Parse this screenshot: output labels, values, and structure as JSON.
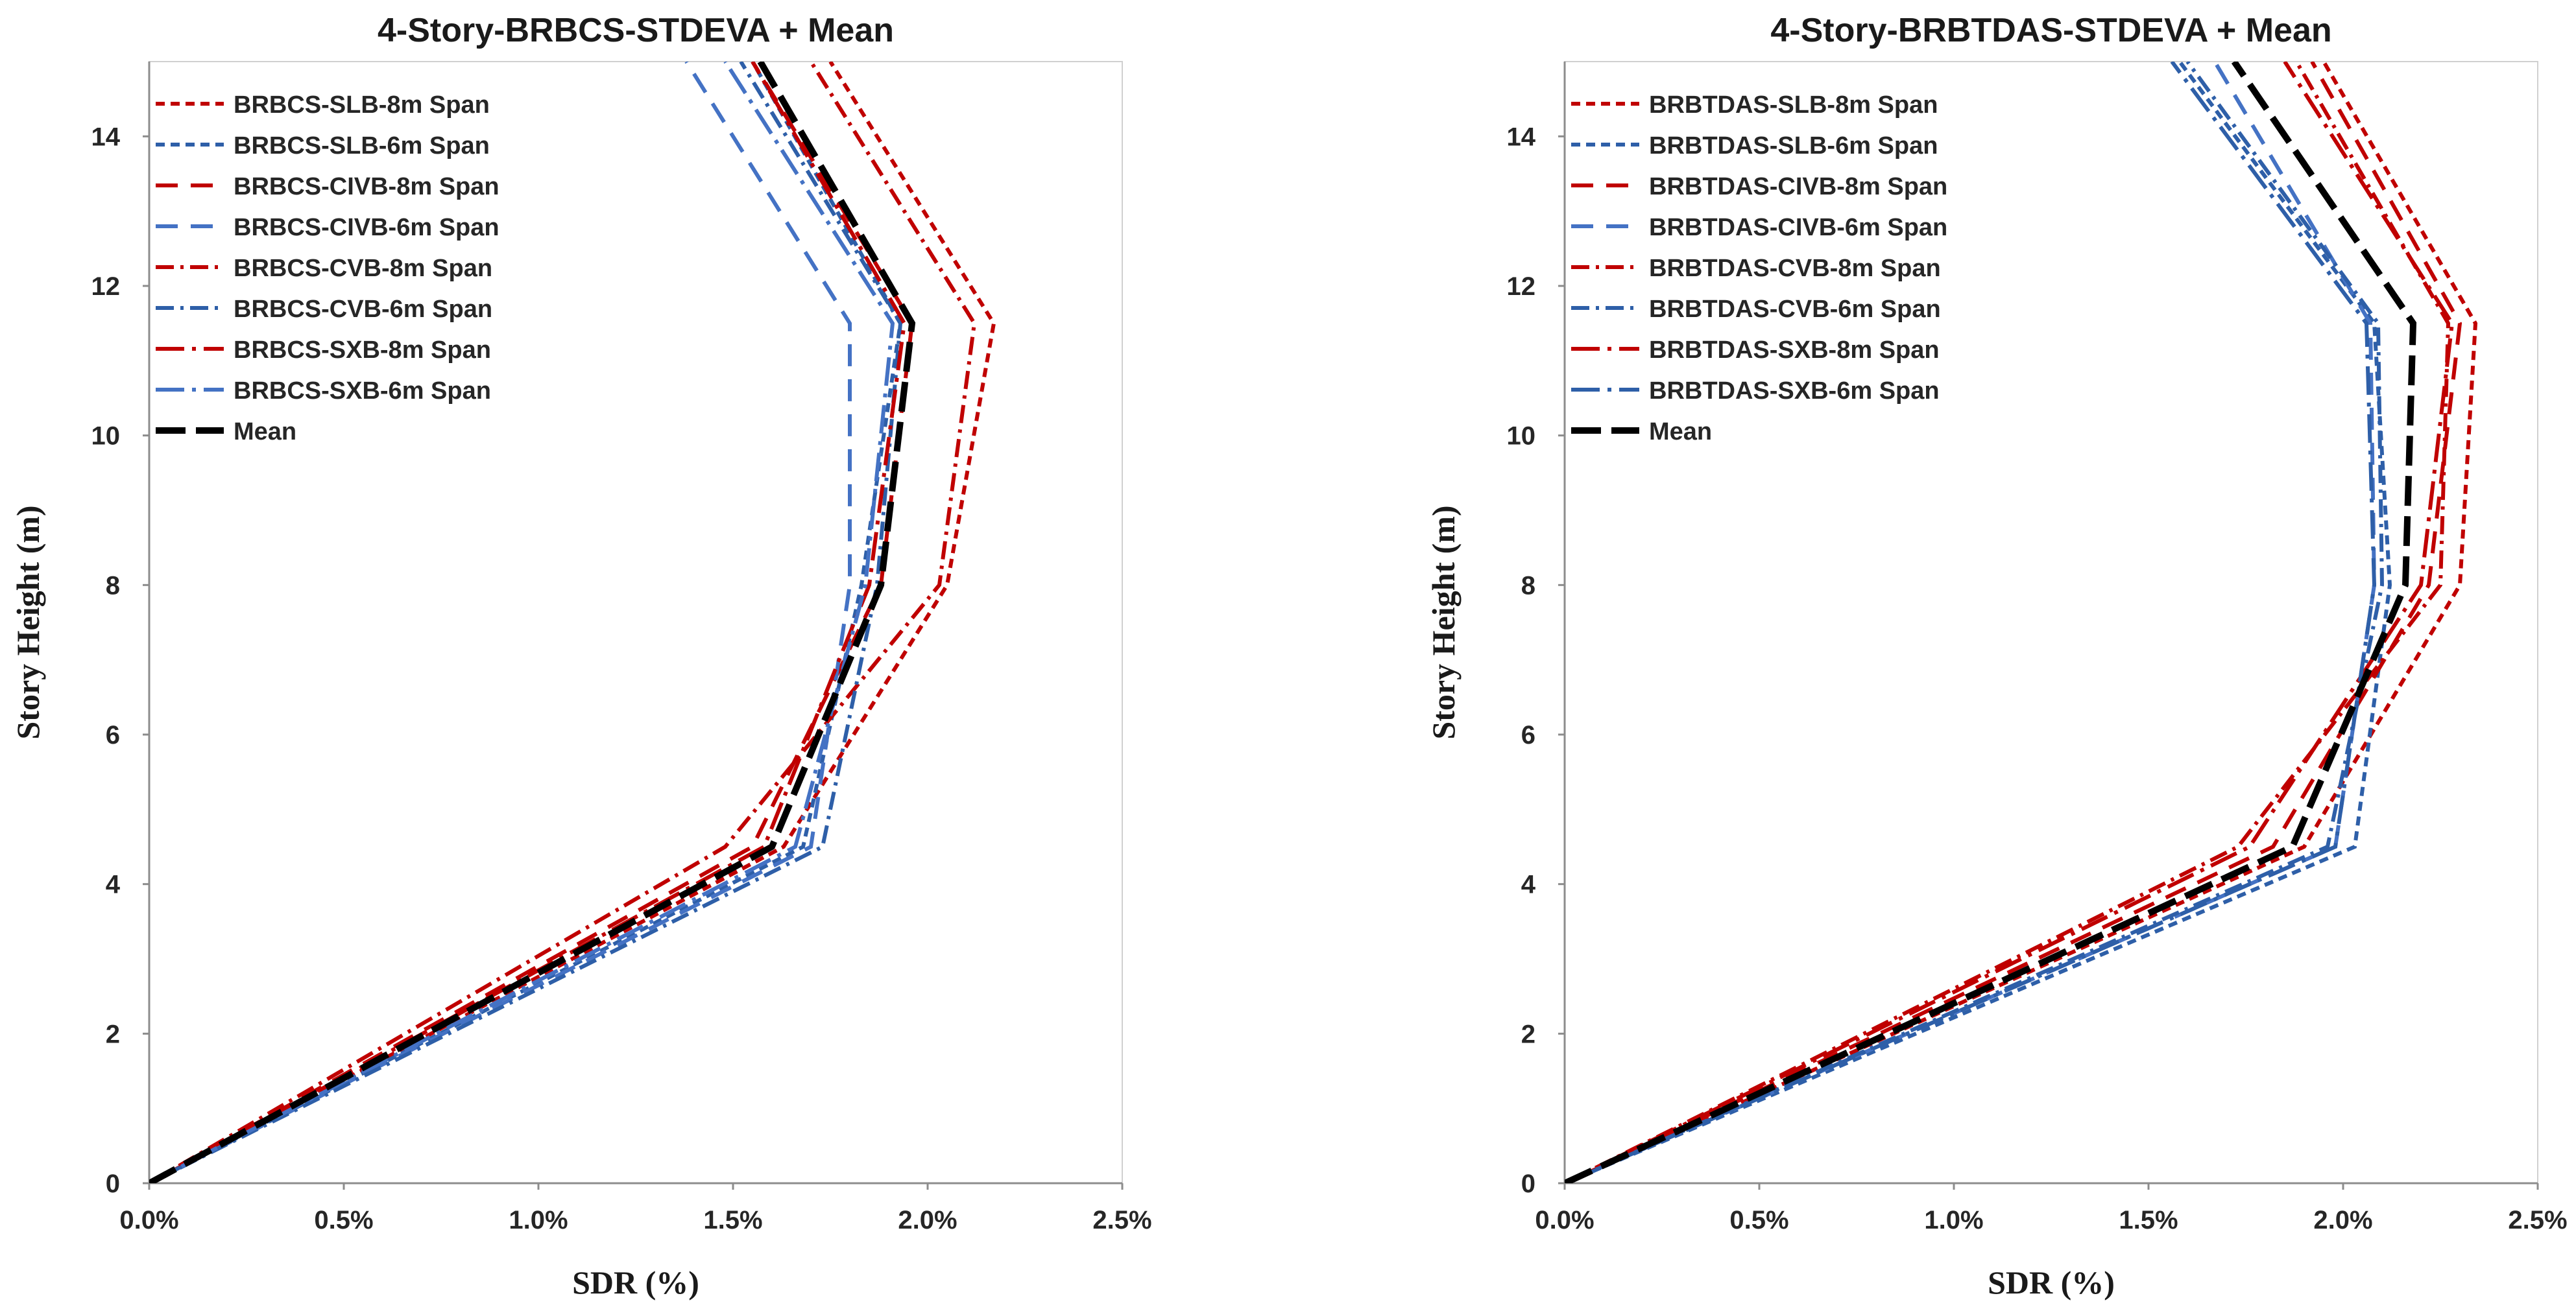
{
  "chart_data": [
    {
      "type": "line",
      "title": "4-Story-BRBCS-STDEVA + Mean",
      "xlabel": "SDR (%)",
      "ylabel": "Story Height (m)",
      "xlim": [
        0,
        2.5
      ],
      "ylim": [
        0,
        15
      ],
      "x_ticks": [
        "0.0%",
        "0.5%",
        "1.0%",
        "1.5%",
        "2.0%",
        "2.5%"
      ],
      "y_ticks": [
        "0",
        "2",
        "4",
        "6",
        "8",
        "10",
        "12",
        "14"
      ],
      "legend_position": "top-left",
      "series": [
        {
          "name": "BRBCS-SLB-8m Span",
          "color": "#C00000",
          "dash": "short-dash",
          "points": [
            [
              0,
              0
            ],
            [
              1.63,
              4.5
            ],
            [
              2.05,
              8
            ],
            [
              2.17,
              11.5
            ],
            [
              1.75,
              15
            ]
          ]
        },
        {
          "name": "BRBCS-SLB-6m Span",
          "color": "#2E5FA8",
          "dash": "short-dash",
          "points": [
            [
              0,
              0
            ],
            [
              1.68,
              4.5
            ],
            [
              1.83,
              8
            ],
            [
              1.93,
              11.5
            ],
            [
              1.55,
              15
            ]
          ]
        },
        {
          "name": "BRBCS-CIVB-8m Span",
          "color": "#C00000",
          "dash": "long-dash",
          "points": [
            [
              0,
              0
            ],
            [
              1.55,
              4.5
            ],
            [
              1.88,
              8
            ],
            [
              1.96,
              11.5
            ],
            [
              1.55,
              15
            ]
          ]
        },
        {
          "name": "BRBCS-CIVB-6m Span",
          "color": "#4472C4",
          "dash": "long-dash",
          "points": [
            [
              0,
              0
            ],
            [
              1.7,
              4.5
            ],
            [
              1.8,
              8
            ],
            [
              1.8,
              11.5
            ],
            [
              1.38,
              15
            ]
          ]
        },
        {
          "name": "BRBCS-CVB-8m Span",
          "color": "#C00000",
          "dash": "dash-dot",
          "points": [
            [
              0,
              0
            ],
            [
              1.48,
              4.5
            ],
            [
              2.03,
              8
            ],
            [
              2.12,
              11.5
            ],
            [
              1.7,
              15
            ]
          ]
        },
        {
          "name": "BRBCS-CVB-6m Span",
          "color": "#2E5FA8",
          "dash": "dash-dot",
          "points": [
            [
              0,
              0
            ],
            [
              1.73,
              4.5
            ],
            [
              1.87,
              8
            ],
            [
              1.93,
              11.5
            ],
            [
              1.52,
              15
            ]
          ]
        },
        {
          "name": "BRBCS-SXB-8m Span",
          "color": "#C00000",
          "dash": "long-dash-dot",
          "points": [
            [
              0,
              0
            ],
            [
              1.58,
              4.5
            ],
            [
              1.85,
              8
            ],
            [
              1.94,
              11.5
            ],
            [
              1.55,
              15
            ]
          ]
        },
        {
          "name": "BRBCS-SXB-6m Span",
          "color": "#4472C4",
          "dash": "long-dash-dot",
          "points": [
            [
              0,
              0
            ],
            [
              1.66,
              4.5
            ],
            [
              1.84,
              8
            ],
            [
              1.91,
              11.5
            ],
            [
              1.48,
              15
            ]
          ]
        },
        {
          "name": "Mean",
          "color": "#000000",
          "dash": "mean-dash",
          "points": [
            [
              0,
              0
            ],
            [
              1.6,
              4.5
            ],
            [
              1.88,
              8
            ],
            [
              1.96,
              11.5
            ],
            [
              1.57,
              15
            ]
          ]
        }
      ]
    },
    {
      "type": "line",
      "title": "4-Story-BRBTDAS-STDEVA + Mean",
      "xlabel": "SDR (%)",
      "ylabel": "Story Height (m)",
      "xlim": [
        0,
        2.5
      ],
      "ylim": [
        0,
        15
      ],
      "x_ticks": [
        "0.0%",
        "0.5%",
        "1.0%",
        "1.5%",
        "2.0%",
        "2.5%"
      ],
      "y_ticks": [
        "0",
        "2",
        "4",
        "6",
        "8",
        "10",
        "12",
        "14"
      ],
      "legend_position": "top-left",
      "series": [
        {
          "name": "BRBTDAS-SLB-8m Span",
          "color": "#C00000",
          "dash": "short-dash",
          "points": [
            [
              0,
              0
            ],
            [
              1.9,
              4.5
            ],
            [
              2.3,
              8
            ],
            [
              2.34,
              11.5
            ],
            [
              1.95,
              15
            ]
          ]
        },
        {
          "name": "BRBTDAS-SLB-6m Span",
          "color": "#2E5FA8",
          "dash": "short-dash",
          "points": [
            [
              0,
              0
            ],
            [
              2.03,
              4.5
            ],
            [
              2.12,
              8
            ],
            [
              2.08,
              11.5
            ],
            [
              1.58,
              15
            ]
          ]
        },
        {
          "name": "BRBTDAS-CIVB-8m Span",
          "color": "#C00000",
          "dash": "long-dash",
          "points": [
            [
              0,
              0
            ],
            [
              1.82,
              4.5
            ],
            [
              2.22,
              8
            ],
            [
              2.3,
              11.5
            ],
            [
              1.92,
              15
            ]
          ]
        },
        {
          "name": "BRBTDAS-CIVB-6m Span",
          "color": "#4472C4",
          "dash": "long-dash",
          "points": [
            [
              0,
              0
            ],
            [
              1.98,
              4.5
            ],
            [
              2.08,
              8
            ],
            [
              2.07,
              11.5
            ],
            [
              1.67,
              15
            ]
          ]
        },
        {
          "name": "BRBTDAS-CVB-8m Span",
          "color": "#C00000",
          "dash": "dash-dot",
          "points": [
            [
              0,
              0
            ],
            [
              1.73,
              4.5
            ],
            [
              2.25,
              8
            ],
            [
              2.27,
              11.5
            ],
            [
              1.88,
              15
            ]
          ]
        },
        {
          "name": "BRBTDAS-CVB-6m Span",
          "color": "#2E5FA8",
          "dash": "dash-dot",
          "points": [
            [
              0,
              0
            ],
            [
              1.96,
              4.5
            ],
            [
              2.1,
              8
            ],
            [
              2.09,
              11.5
            ],
            [
              1.6,
              15
            ]
          ]
        },
        {
          "name": "BRBTDAS-SXB-8m Span",
          "color": "#C00000",
          "dash": "long-dash-dot",
          "points": [
            [
              0,
              0
            ],
            [
              1.76,
              4.5
            ],
            [
              2.2,
              8
            ],
            [
              2.28,
              11.5
            ],
            [
              1.85,
              15
            ]
          ]
        },
        {
          "name": "BRBTDAS-SXB-6m Span",
          "color": "#2E5FA8",
          "dash": "long-dash-dot",
          "points": [
            [
              0,
              0
            ],
            [
              1.98,
              4.5
            ],
            [
              2.08,
              8
            ],
            [
              2.06,
              11.5
            ],
            [
              1.56,
              15
            ]
          ]
        },
        {
          "name": "Mean",
          "color": "#000000",
          "dash": "mean-dash",
          "points": [
            [
              0,
              0
            ],
            [
              1.87,
              4.5
            ],
            [
              2.16,
              8
            ],
            [
              2.18,
              11.5
            ],
            [
              1.72,
              15
            ]
          ]
        }
      ]
    }
  ]
}
